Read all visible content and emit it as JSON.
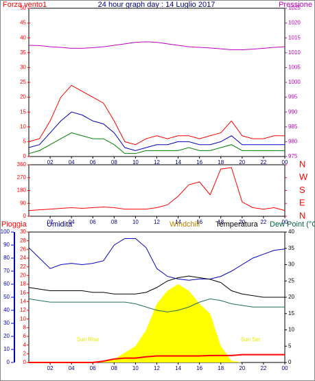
{
  "chart_data": [
    {
      "type": "line",
      "title": "24 hour graph day : 14 Luglio 2017",
      "ylabel": "Forza vento1",
      "y2label": "Pressione",
      "x": [
        0,
        1,
        2,
        3,
        4,
        5,
        6,
        7,
        8,
        9,
        10,
        11,
        12,
        13,
        14,
        15,
        16,
        17,
        18,
        19,
        20,
        21,
        22,
        23,
        24
      ],
      "xlim": [
        0,
        24
      ],
      "xticks": [
        {
          "value": 2,
          "label": "02"
        },
        {
          "value": 4,
          "label": "04"
        },
        {
          "value": 6,
          "label": "06"
        },
        {
          "value": 8,
          "label": "08"
        },
        {
          "value": 10,
          "label": "10"
        },
        12,
        14,
        16,
        18,
        20,
        22,
        {
          "value": 24,
          "label": "00"
        }
      ],
      "ylim": [
        0,
        50
      ],
      "yticks": [
        0,
        5,
        10,
        15,
        20,
        25,
        30,
        35,
        40,
        45,
        50
      ],
      "y2lim": [
        975,
        1025
      ],
      "y2ticks": [
        975,
        980,
        985,
        990,
        995,
        1000,
        1005,
        1010,
        1015,
        1020,
        1025
      ],
      "ycolor": "#ff0000",
      "y2color": "#c000c0",
      "series": [
        {
          "color": "#ff0000",
          "values": [
            5,
            6,
            12,
            20,
            24,
            22,
            20,
            18,
            12,
            5,
            4,
            6,
            7,
            6,
            7,
            7,
            6,
            7,
            8,
            12,
            7,
            6,
            6,
            7,
            7
          ]
        },
        {
          "color": "#0000c0",
          "values": [
            3,
            4,
            8,
            12,
            15,
            14,
            12,
            11,
            8,
            3,
            2,
            3,
            4,
            4,
            5,
            5,
            4,
            4,
            5,
            7,
            4,
            4,
            4,
            4,
            4
          ]
        },
        {
          "color": "#008000",
          "values": [
            1,
            2,
            4,
            6,
            8,
            7,
            6,
            6,
            4,
            1,
            1,
            2,
            2,
            2,
            2,
            3,
            2,
            2,
            3,
            4,
            2,
            2,
            2,
            2,
            2
          ]
        },
        {
          "color": "#c000c0",
          "axis": "y2",
          "values": [
            1012.5,
            1012.4,
            1012,
            1011.8,
            1011.5,
            1011.5,
            1011.7,
            1012,
            1012.5,
            1013,
            1013.5,
            1013.7,
            1013.5,
            1013,
            1012.5,
            1012,
            1011.8,
            1011.6,
            1011.3,
            1011,
            1011,
            1011.2,
            1011.5,
            1011.8,
            1012
          ]
        }
      ]
    },
    {
      "type": "line",
      "x": [
        0,
        1,
        2,
        3,
        4,
        5,
        6,
        7,
        8,
        9,
        10,
        11,
        12,
        13,
        14,
        15,
        16,
        17,
        18,
        19,
        20,
        21,
        22,
        23,
        24
      ],
      "xlim": [
        0,
        24
      ],
      "xticks": [
        {
          "value": 2,
          "label": "02"
        },
        {
          "value": 4,
          "label": "04"
        },
        {
          "value": 6,
          "label": "06"
        },
        {
          "value": 8,
          "label": "08"
        },
        {
          "value": 10,
          "label": "10"
        },
        12,
        14,
        16,
        18,
        20,
        22,
        {
          "value": 24,
          "label": "00"
        }
      ],
      "ylim": [
        0,
        360
      ],
      "yticks": [
        0,
        90,
        180,
        270,
        360
      ],
      "ycolor": "#ff0000",
      "y2ticks": [
        {
          "value": 360,
          "label": "N"
        },
        {
          "value": 270,
          "label": "W"
        },
        {
          "value": 180,
          "label": "S"
        },
        {
          "value": 90,
          "label": "E"
        },
        {
          "value": 0,
          "label": "N"
        }
      ],
      "series": [
        {
          "color": "#ff0000",
          "values": [
            40,
            45,
            50,
            55,
            60,
            55,
            60,
            65,
            60,
            50,
            50,
            50,
            60,
            80,
            140,
            220,
            240,
            150,
            330,
            340,
            100,
            60,
            50,
            60,
            40
          ]
        }
      ]
    },
    {
      "type": "line",
      "legend": [
        {
          "text": "Pioggia",
          "color": "#ff0000"
        },
        {
          "text": "Umidita",
          "color": "#000080"
        },
        {
          "text": "Windchill",
          "color": "#c08000"
        },
        {
          "text": "Temperatura",
          "color": "#000000"
        },
        {
          "text": "Dew Point (°C",
          "color": "#006040"
        }
      ],
      "annotations": [
        "Sun Rise",
        "Sun Set"
      ],
      "x": [
        0,
        1,
        2,
        3,
        4,
        5,
        6,
        7,
        8,
        9,
        10,
        11,
        12,
        13,
        14,
        15,
        16,
        17,
        18,
        19,
        20,
        21,
        22,
        23,
        24
      ],
      "xlim": [
        0,
        24
      ],
      "xticks": [
        {
          "value": 2,
          "label": "02"
        },
        {
          "value": 4,
          "label": "04"
        },
        {
          "value": 6,
          "label": "06"
        },
        {
          "value": 8,
          "label": "08"
        },
        {
          "value": 10,
          "label": "10"
        },
        12,
        14,
        16,
        18,
        20,
        22,
        {
          "value": 24,
          "label": "00"
        }
      ],
      "ylim": [
        0,
        100
      ],
      "yticks": [
        0,
        10,
        20,
        30,
        40,
        50,
        60,
        70,
        80,
        90,
        100
      ],
      "ycolor": "#0000c0",
      "y3lim": [
        0,
        30
      ],
      "y3ticks": [
        0,
        2,
        4,
        6,
        8,
        10,
        12,
        14,
        16,
        18,
        20,
        22,
        24,
        26,
        28,
        30
      ],
      "y3color": "#ff0000",
      "y2lim": [
        0,
        40
      ],
      "y2ticks": [
        0,
        5,
        10,
        15,
        20,
        25,
        30,
        35,
        40
      ],
      "y2color": "#000000",
      "series": [
        {
          "color": "#ffff00",
          "axis": "y2",
          "area": true,
          "values": [
            0,
            0,
            0,
            0,
            0,
            0,
            0,
            0.5,
            1,
            3,
            5,
            10,
            18,
            22,
            24,
            22,
            18,
            15,
            5,
            0.5,
            0,
            0,
            0,
            0,
            0
          ]
        },
        {
          "color": "#0000c0",
          "values": [
            88,
            80,
            72,
            75,
            76,
            75,
            76,
            78,
            90,
            95,
            95,
            88,
            72,
            66,
            64,
            63,
            64,
            64,
            66,
            70,
            75,
            80,
            83,
            86,
            87
          ]
        },
        {
          "color": "#000000",
          "axis": "y2",
          "values": [
            23,
            22.5,
            22,
            22,
            22,
            22,
            21.5,
            21.5,
            21,
            21,
            21,
            21.5,
            23,
            25,
            26,
            26.5,
            26,
            25.5,
            24.5,
            22,
            21,
            20.5,
            20,
            20,
            20
          ]
        },
        {
          "color": "#207050",
          "axis": "y2",
          "values": [
            19.5,
            19,
            18.5,
            18.5,
            18.5,
            18.5,
            18.5,
            18.5,
            18.5,
            18.5,
            18,
            17,
            16,
            15.5,
            16,
            17,
            18.5,
            19.5,
            19,
            18,
            17.5,
            17,
            17,
            17,
            17
          ]
        },
        {
          "color": "#ff0000",
          "axis": "y3",
          "values": [
            0,
            0,
            0,
            0,
            0,
            0,
            0,
            0.3,
            0.8,
            1,
            1,
            1.3,
            1.5,
            1.5,
            1.5,
            1.5,
            1.5,
            1.6,
            1.6,
            1.6,
            1.8,
            1.8,
            1.8,
            1.8,
            1.8
          ]
        }
      ]
    }
  ]
}
